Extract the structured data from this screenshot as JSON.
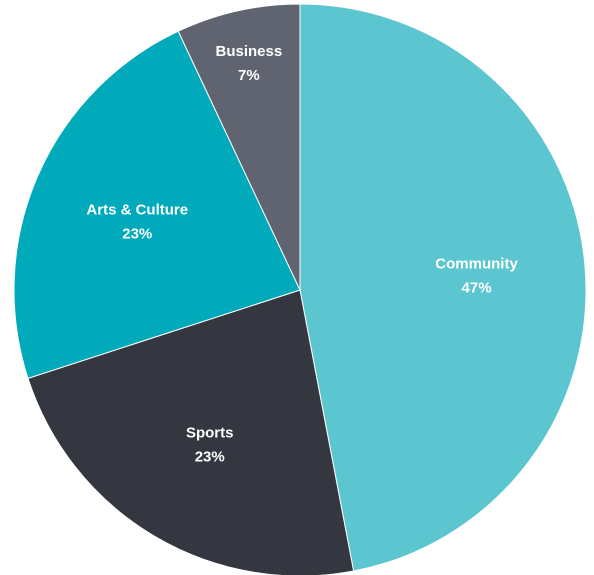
{
  "chart_data": {
    "type": "pie",
    "start_angle_deg": 0,
    "direction": "clockwise",
    "slices": [
      {
        "label": "Community",
        "value": 47,
        "display": "47%",
        "color": "#5cc6d0"
      },
      {
        "label": "Sports",
        "value": 23,
        "display": "23%",
        "color": "#353740"
      },
      {
        "label": "Arts & Culture",
        "value": 23,
        "display": "23%",
        "color": "#00aabb"
      },
      {
        "label": "Business",
        "value": 7,
        "display": "7%",
        "color": "#5f6470"
      }
    ]
  }
}
